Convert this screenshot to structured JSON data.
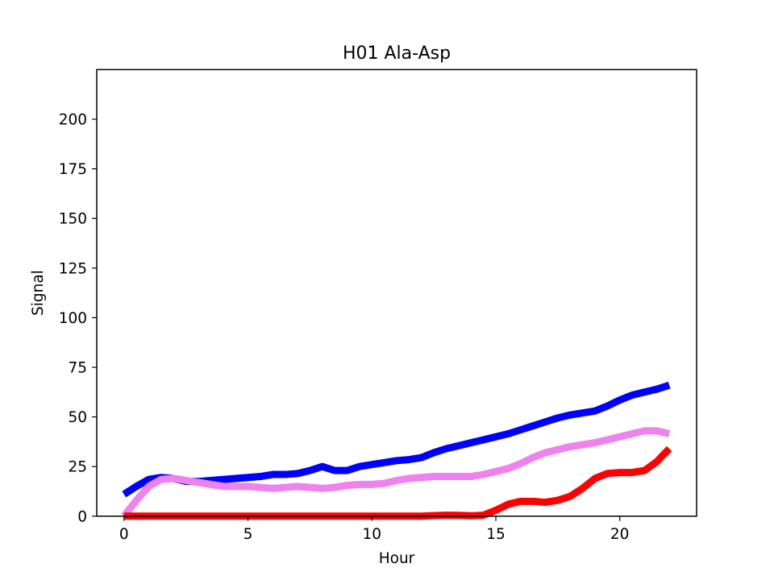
{
  "chart_data": {
    "type": "line",
    "title": "H01 Ala-Asp",
    "xlabel": "Hour",
    "ylabel": "Signal",
    "xlim": [
      -1.1,
      23.1
    ],
    "ylim": [
      0,
      225
    ],
    "xticks": [
      0,
      5,
      10,
      15,
      20
    ],
    "yticks": [
      0,
      25,
      50,
      75,
      100,
      125,
      150,
      175,
      200
    ],
    "grid": false,
    "series": [
      {
        "color": "#0000ff",
        "x": [
          0,
          0.5,
          1,
          1.5,
          2,
          2.5,
          3,
          3.5,
          4,
          4.5,
          5,
          5.5,
          6,
          6.5,
          7,
          7.5,
          8,
          8.5,
          9,
          9.5,
          10,
          10.5,
          11,
          11.5,
          12,
          12.5,
          13,
          13.5,
          14,
          14.5,
          15,
          15.5,
          16,
          16.5,
          17,
          17.5,
          18,
          18.5,
          19,
          19.5,
          20,
          20.5,
          21,
          21.5,
          22
        ],
        "values": [
          11,
          15,
          18.5,
          19.5,
          19,
          17.5,
          17.5,
          18,
          18.5,
          19,
          19.5,
          20,
          21,
          21,
          21.5,
          23,
          25,
          23,
          23,
          25,
          26,
          27,
          28,
          28.5,
          29.5,
          32,
          34,
          35.5,
          37,
          38.5,
          40,
          41.5,
          43.5,
          45.5,
          47.5,
          49.5,
          51,
          52,
          53,
          55.5,
          58.5,
          61,
          62.5,
          64,
          66
        ]
      },
      {
        "color": "#ee82ee",
        "x": [
          0,
          0.5,
          1,
          1.5,
          2,
          2.5,
          3,
          3.5,
          4,
          4.5,
          5,
          5.5,
          6,
          6.5,
          7,
          7.5,
          8,
          8.5,
          9,
          9.5,
          10,
          10.5,
          11,
          11.5,
          12,
          12.5,
          13,
          13.5,
          14,
          14.5,
          15,
          15.5,
          16,
          16.5,
          17,
          17.5,
          18,
          18.5,
          19,
          19.5,
          20,
          20.5,
          21,
          21.5,
          22
        ],
        "values": [
          0,
          8,
          15,
          18.5,
          19,
          18,
          17,
          16,
          15,
          15,
          15,
          14.5,
          14,
          14.5,
          15,
          14.5,
          14,
          14.5,
          15.5,
          16,
          16,
          16.5,
          18,
          19,
          19.5,
          20,
          20,
          20,
          20,
          21,
          22.5,
          24,
          26.5,
          29.5,
          32,
          33.5,
          35,
          36,
          37,
          38.5,
          40,
          41.5,
          43,
          43,
          41.5
        ]
      },
      {
        "color": "#ff0000",
        "x": [
          0,
          0.5,
          1,
          1.5,
          2,
          2.5,
          3,
          3.5,
          4,
          4.5,
          5,
          5.5,
          6,
          6.5,
          7,
          7.5,
          8,
          8.5,
          9,
          9.5,
          10,
          10.5,
          11,
          11.5,
          12,
          12.5,
          13,
          13.5,
          14,
          14.5,
          15,
          15.5,
          16,
          16.5,
          17,
          17.5,
          18,
          18.5,
          19,
          19.5,
          20,
          20.5,
          21,
          21.5,
          22
        ],
        "values": [
          0,
          0,
          0,
          0,
          0,
          0,
          0,
          0,
          0,
          0,
          0,
          0,
          0,
          0,
          0,
          0,
          0,
          0,
          0,
          0,
          0,
          0,
          0,
          0,
          0,
          0.3,
          0.5,
          0.4,
          0.2,
          0.5,
          3,
          6,
          7.5,
          7.5,
          7,
          8,
          10,
          14,
          19,
          21.5,
          22,
          22,
          23,
          27.5,
          34
        ]
      }
    ]
  }
}
